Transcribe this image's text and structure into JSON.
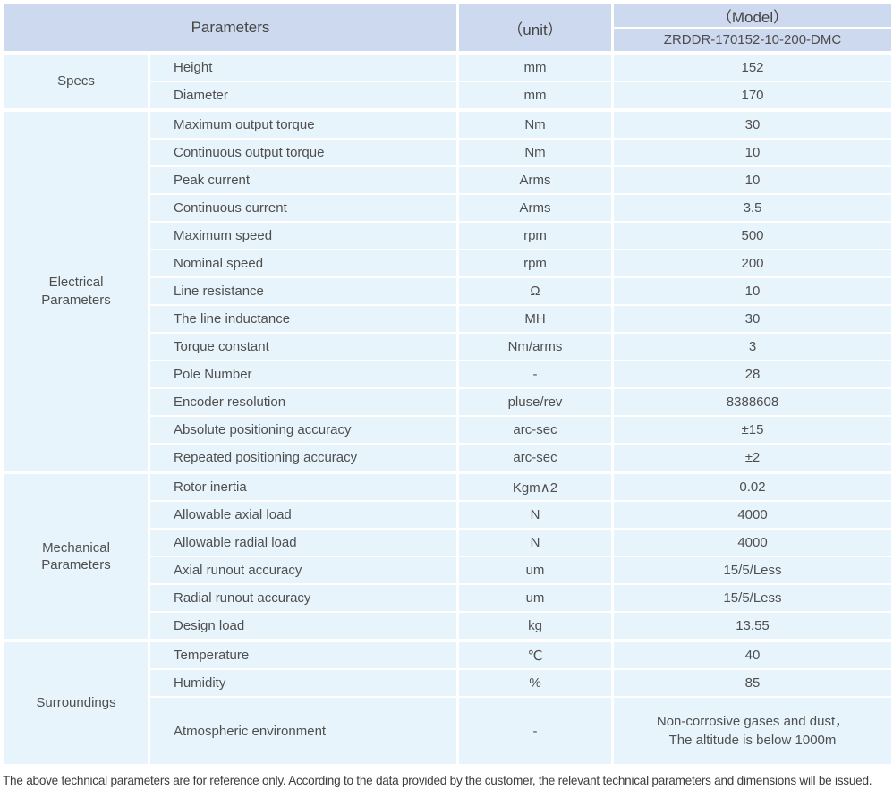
{
  "header": {
    "parameters_label": "Parameters",
    "unit_label": "（unit）",
    "model_label": "（Model）",
    "model_value": "ZRDDR-170152-10-200-DMC"
  },
  "colors": {
    "header_bg": "#cdd9ee",
    "cell_bg": "#e7f4fb",
    "border": "#ffffff",
    "text": "#4f4f4f"
  },
  "groups": [
    {
      "label": "Specs",
      "rows": [
        {
          "name": "Height",
          "unit": "mm",
          "value": "152"
        },
        {
          "name": "Diameter",
          "unit": "mm",
          "value": "170"
        }
      ]
    },
    {
      "label": "Electrical Parameters",
      "rows": [
        {
          "name": "Maximum output torque",
          "unit": "Nm",
          "value": "30"
        },
        {
          "name": "Continuous output torque",
          "unit": "Nm",
          "value": "10"
        },
        {
          "name": "Peak current",
          "unit": "Arms",
          "value": "10"
        },
        {
          "name": "Continuous current",
          "unit": "Arms",
          "value": "3.5"
        },
        {
          "name": "Maximum speed",
          "unit": "rpm",
          "value": "500"
        },
        {
          "name": "Nominal speed",
          "unit": "rpm",
          "value": "200"
        },
        {
          "name": "Line resistance",
          "unit": "Ω",
          "value": "10"
        },
        {
          "name": "The line inductance",
          "unit": "MH",
          "value": "30"
        },
        {
          "name": "Torque constant",
          "unit": "Nm/arms",
          "value": "3"
        },
        {
          "name": "Pole Number",
          "unit": "-",
          "value": "28"
        },
        {
          "name": "Encoder resolution",
          "unit": "pluse/rev",
          "value": "8388608"
        },
        {
          "name": "Absolute positioning accuracy",
          "unit": "arc-sec",
          "value": "±15"
        },
        {
          "name": "Repeated positioning accuracy",
          "unit": "arc-sec",
          "value": "±2"
        }
      ]
    },
    {
      "label": "Mechanical Parameters",
      "rows": [
        {
          "name": "Rotor inertia",
          "unit": "Kgm∧2",
          "value": "0.02"
        },
        {
          "name": "Allowable axial load",
          "unit": "N",
          "value": "4000"
        },
        {
          "name": "Allowable radial load",
          "unit": "N",
          "value": "4000"
        },
        {
          "name": "Axial runout accuracy",
          "unit": "um",
          "value": "15/5/Less"
        },
        {
          "name": "Radial runout accuracy",
          "unit": "um",
          "value": "15/5/Less"
        },
        {
          "name": "Design load",
          "unit": "kg",
          "value": "13.55"
        }
      ]
    },
    {
      "label": "Surroundings",
      "rows": [
        {
          "name": "Temperature",
          "unit": "℃",
          "value": "40"
        },
        {
          "name": "Humidity",
          "unit": "%",
          "value": "85"
        },
        {
          "name": "Atmospheric environment",
          "unit": "-",
          "value": "Non-corrosive gases and dust，\nThe altitude is below 1000m"
        }
      ]
    }
  ],
  "footer": {
    "note": "The above technical parameters are for reference only. According to the data provided by the customer, the relevant technical parameters and dimensions will be issued."
  }
}
